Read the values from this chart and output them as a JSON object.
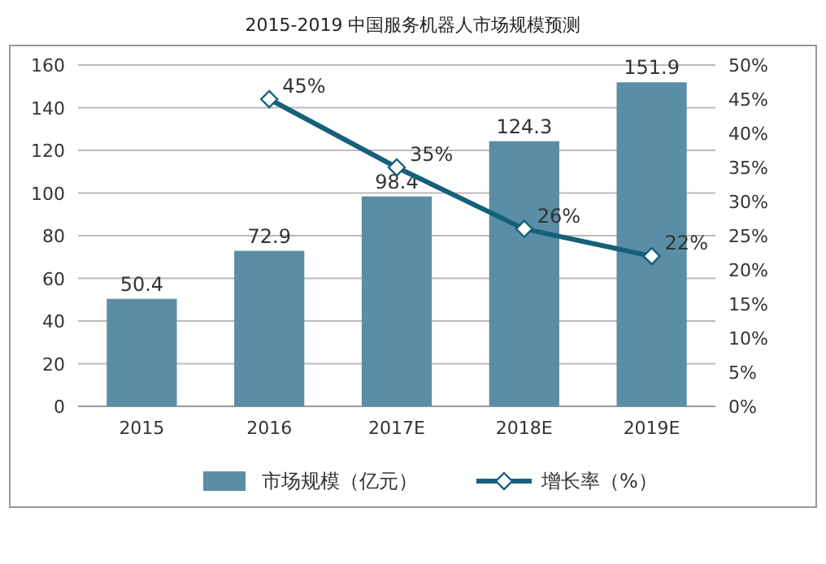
{
  "chart_data": {
    "type": "bar",
    "title": "2015-2019 中国服务机器人市场规模预测",
    "categories": [
      "2015",
      "2016",
      "2017E",
      "2018E",
      "2019E"
    ],
    "series": [
      {
        "name": "市场规模（亿元）",
        "color": "#5a8ea6",
        "values": [
          50.4,
          72.9,
          98.4,
          124.3,
          151.9
        ]
      },
      {
        "name": "增长率（%）",
        "type": "line",
        "axis": "y2",
        "color": "#15607a",
        "values": [
          null,
          45,
          35,
          26,
          22
        ],
        "value_labels": [
          null,
          "45%",
          "35%",
          "26%",
          "22%"
        ]
      }
    ],
    "marker": "diamond",
    "data_labels": true,
    "ylim": [
      0,
      160
    ],
    "yticks": [
      0,
      20,
      40,
      60,
      80,
      100,
      120,
      140,
      160
    ],
    "y2lim": [
      0,
      50
    ],
    "y2ticks": [
      {
        "value": 0,
        "label": "0%"
      },
      {
        "value": 5,
        "label": "5%"
      },
      {
        "value": 10,
        "label": "10%"
      },
      {
        "value": 15,
        "label": "15%"
      },
      {
        "value": 20,
        "label": "20%"
      },
      {
        "value": 25,
        "label": "25%"
      },
      {
        "value": 30,
        "label": "30%"
      },
      {
        "value": 35,
        "label": "35%"
      },
      {
        "value": 40,
        "label": "40%"
      },
      {
        "value": 45,
        "label": "45%"
      },
      {
        "value": 50,
        "label": "50%"
      }
    ],
    "grid": "y",
    "legend": "bottom"
  }
}
